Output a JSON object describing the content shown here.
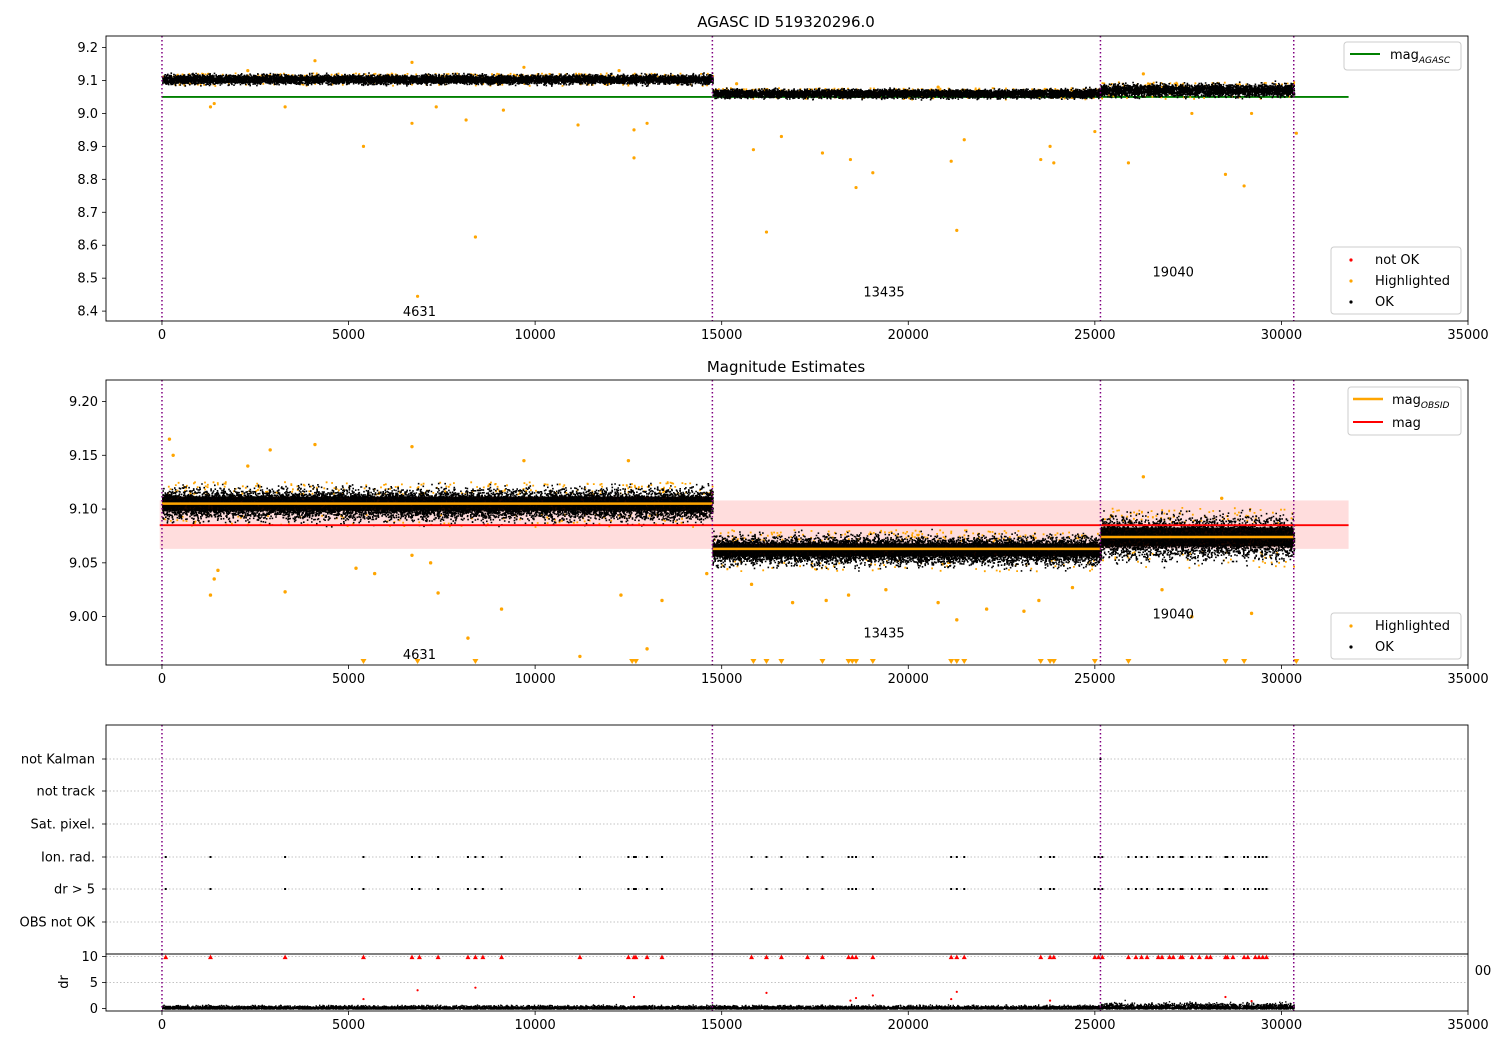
{
  "figure": {
    "background": "#ffffff",
    "colors": {
      "ok": "#000000",
      "highlighted": "#ffa500",
      "not_ok": "#ff0000",
      "mag_agasc_line": "#008000",
      "mag_obsid_line": "#ffa500",
      "mag_line": "#ff0000",
      "mag_band": "#ffdddd",
      "obs_boundary": "#800080",
      "grid": "#b0b0b0"
    }
  },
  "chart_data": [
    {
      "type": "scatter",
      "title": "AGASC ID 519320296.0",
      "xlabel": "",
      "ylabel": "",
      "xlim": [
        -1500,
        35000
      ],
      "ylim": [
        8.37,
        9.235
      ],
      "xticks": [
        0,
        5000,
        10000,
        15000,
        20000,
        25000,
        30000,
        35000
      ],
      "yticks": [
        8.4,
        8.5,
        8.6,
        8.7,
        8.8,
        8.9,
        9.0,
        9.1,
        9.2
      ],
      "ytick_labels": [
        "8.4",
        "8.5",
        "8.6",
        "8.7",
        "8.8",
        "8.9",
        "9.0",
        "9.1",
        "9.2"
      ],
      "obs_boundaries": [
        0,
        14750,
        25150,
        30330
      ],
      "obs_labels": [
        {
          "text": "4631",
          "x": 6900,
          "y": 8.4
        },
        {
          "text": "13435",
          "x": 19350,
          "y": 8.46
        },
        {
          "text": "19040",
          "x": 27100,
          "y": 8.52
        }
      ],
      "hlines": [
        {
          "name": "mag_AGASC",
          "y": 9.05,
          "x": [
            0,
            31800
          ],
          "color": "#008000"
        }
      ],
      "ok_segments": [
        {
          "x": [
            0,
            14750
          ],
          "center": 9.105,
          "spread": 0.012
        },
        {
          "x": [
            14750,
            25150
          ],
          "center": 9.062,
          "spread": 0.011
        },
        {
          "x": [
            25150,
            30330
          ],
          "center": 9.072,
          "spread": 0.016
        }
      ],
      "highlighted_points": [
        [
          6850,
          8.445
        ],
        [
          8400,
          8.625
        ],
        [
          16200,
          8.64
        ],
        [
          21300,
          8.645
        ],
        [
          5400,
          8.9
        ],
        [
          8150,
          8.98
        ],
        [
          9150,
          9.01
        ],
        [
          11150,
          8.965
        ],
        [
          12650,
          8.865
        ],
        [
          12650,
          8.95
        ],
        [
          13000,
          8.97
        ],
        [
          6700,
          8.97
        ],
        [
          7350,
          9.02
        ],
        [
          1300,
          9.02
        ],
        [
          1400,
          9.03
        ],
        [
          3300,
          9.02
        ],
        [
          15850,
          8.89
        ],
        [
          16600,
          8.93
        ],
        [
          17700,
          8.88
        ],
        [
          18450,
          8.86
        ],
        [
          18600,
          8.775
        ],
        [
          19050,
          8.82
        ],
        [
          21150,
          8.855
        ],
        [
          21500,
          8.92
        ],
        [
          23550,
          8.86
        ],
        [
          23800,
          8.9
        ],
        [
          23900,
          8.85
        ],
        [
          25000,
          8.945
        ],
        [
          25900,
          8.85
        ],
        [
          27600,
          9.0
        ],
        [
          28500,
          8.815
        ],
        [
          29000,
          8.78
        ],
        [
          29200,
          9.0
        ],
        [
          30400,
          8.94
        ],
        [
          2300,
          9.13
        ],
        [
          4100,
          9.16
        ],
        [
          6700,
          9.155
        ],
        [
          9700,
          9.14
        ],
        [
          12250,
          9.13
        ],
        [
          15400,
          9.09
        ],
        [
          20800,
          9.08
        ],
        [
          26300,
          9.12
        ]
      ],
      "legends": [
        {
          "placement": "upper right",
          "entries": [
            {
              "label": "mag",
              "sub": "AGASC",
              "kind": "line",
              "color": "#008000"
            }
          ]
        },
        {
          "placement": "lower right",
          "entries": [
            {
              "label": "not OK",
              "kind": "point",
              "color": "#ff0000"
            },
            {
              "label": "Highlighted",
              "kind": "point",
              "color": "#ffa500"
            },
            {
              "label": "OK",
              "kind": "point",
              "color": "#000000"
            }
          ]
        }
      ]
    },
    {
      "type": "scatter",
      "title": "Magnitude Estimates",
      "xlabel": "",
      "ylabel": "",
      "xlim": [
        -1500,
        35000
      ],
      "ylim": [
        8.955,
        9.22
      ],
      "xticks": [
        0,
        5000,
        10000,
        15000,
        20000,
        25000,
        30000,
        35000
      ],
      "yticks": [
        9.0,
        9.05,
        9.1,
        9.15,
        9.2
      ],
      "ytick_labels": [
        "9.00",
        "9.05",
        "9.10",
        "9.15",
        "9.20"
      ],
      "obs_boundaries": [
        0,
        14750,
        25150,
        30330
      ],
      "obs_labels": [
        {
          "text": "4631",
          "x": 6900,
          "y": 8.965
        },
        {
          "text": "13435",
          "x": 19350,
          "y": 8.985
        },
        {
          "text": "19040",
          "x": 27100,
          "y": 9.003
        }
      ],
      "mag": 9.085,
      "mag_band": [
        9.063,
        9.108
      ],
      "mag_band_x": [
        -1500,
        31800
      ],
      "mag_obsid": [
        {
          "x": [
            0,
            14750
          ],
          "y": 9.105
        },
        {
          "x": [
            14750,
            25150
          ],
          "y": 9.063
        },
        {
          "x": [
            25150,
            30330
          ],
          "y": 9.074
        }
      ],
      "ok_segments": [
        {
          "x": [
            0,
            14750
          ],
          "center": 9.105,
          "spread": 0.012
        },
        {
          "x": [
            14750,
            25150
          ],
          "center": 9.062,
          "spread": 0.011
        },
        {
          "x": [
            25150,
            30330
          ],
          "center": 9.074,
          "spread": 0.016
        }
      ],
      "highlighted_points": [
        [
          200,
          9.165
        ],
        [
          300,
          9.15
        ],
        [
          1300,
          9.02
        ],
        [
          1400,
          9.035
        ],
        [
          1500,
          9.043
        ],
        [
          2300,
          9.14
        ],
        [
          2900,
          9.155
        ],
        [
          3300,
          9.023
        ],
        [
          4100,
          9.16
        ],
        [
          5200,
          9.045
        ],
        [
          5700,
          9.04
        ],
        [
          6700,
          9.158
        ],
        [
          6700,
          9.057
        ],
        [
          7200,
          9.05
        ],
        [
          7400,
          9.022
        ],
        [
          8200,
          8.98
        ],
        [
          9100,
          9.007
        ],
        [
          9700,
          9.145
        ],
        [
          11200,
          8.963
        ],
        [
          12300,
          9.02
        ],
        [
          12500,
          9.145
        ],
        [
          13000,
          8.97
        ],
        [
          13400,
          9.015
        ],
        [
          14600,
          9.04
        ],
        [
          15800,
          9.03
        ],
        [
          16900,
          9.013
        ],
        [
          17800,
          9.015
        ],
        [
          18400,
          9.02
        ],
        [
          19400,
          9.025
        ],
        [
          20800,
          9.013
        ],
        [
          21300,
          8.997
        ],
        [
          22100,
          9.007
        ],
        [
          23100,
          9.005
        ],
        [
          23500,
          9.015
        ],
        [
          24400,
          9.027
        ],
        [
          26300,
          9.13
        ],
        [
          26800,
          9.025
        ],
        [
          27600,
          9.0
        ],
        [
          28400,
          9.11
        ],
        [
          29200,
          9.003
        ]
      ],
      "clipped_x": [
        5400,
        6850,
        8400,
        12600,
        12700,
        15850,
        16200,
        16600,
        17700,
        18400,
        18500,
        18600,
        19050,
        21150,
        21300,
        21500,
        23550,
        23800,
        23900,
        25000,
        25900,
        28500,
        29000,
        30400
      ],
      "legend": {
        "placement": "upper right",
        "entries": [
          {
            "label": "mag",
            "sub": "OBSID",
            "kind": "line",
            "color": "#ffa500"
          },
          {
            "label": "mag",
            "sub": "",
            "kind": "line",
            "color": "#ff0000"
          }
        ]
      },
      "legend2": {
        "placement": "lower right",
        "entries": [
          {
            "label": "Highlighted",
            "kind": "point",
            "color": "#ffa500"
          },
          {
            "label": "OK",
            "kind": "point",
            "color": "#000000"
          }
        ]
      }
    },
    {
      "type": "scatter",
      "title": "",
      "xlabel": "",
      "ylabel": "",
      "xlim": [
        -1500,
        35000
      ],
      "categories": [
        "OBS not OK",
        "dr > 5",
        "Ion. rad.",
        "Sat. pixel.",
        "not track",
        "not Kalman"
      ],
      "obs_boundaries": [
        0,
        14750,
        25150,
        30330
      ],
      "flag_x": [
        100,
        1300,
        3300,
        5400,
        6700,
        6900,
        7400,
        8200,
        8400,
        8600,
        9100,
        11200,
        12500,
        12650,
        12700,
        13000,
        13400,
        15800,
        16200,
        16600,
        17300,
        17700,
        18400,
        18500,
        18600,
        19050,
        21150,
        21300,
        21500,
        23550,
        23800,
        23900,
        25000,
        25100,
        25200,
        25900,
        26100,
        26250,
        26400,
        26700,
        26800,
        27000,
        27100,
        27300,
        27350,
        27600,
        27800,
        28000,
        28100,
        28500,
        28550,
        28700,
        29000,
        29100,
        29300,
        29400,
        29500,
        29600
      ]
    },
    {
      "type": "scatter",
      "title": "",
      "xlabel": "",
      "ylabel": "dr",
      "xlim": [
        -1500,
        35000
      ],
      "ylim": [
        -0.5,
        10.5
      ],
      "xticks": [
        0,
        5000,
        10000,
        15000,
        20000,
        25000,
        30000,
        35000
      ],
      "yticks": [
        0,
        5,
        10
      ],
      "obs_boundaries": [
        0,
        14750,
        25150,
        30330
      ],
      "clipped_value": 10,
      "outliers": [
        [
          5400,
          1.8
        ],
        [
          6850,
          3.5
        ],
        [
          8400,
          4.0
        ],
        [
          12650,
          2.2
        ],
        [
          16200,
          3.0
        ],
        [
          18450,
          1.5
        ],
        [
          18600,
          2.0
        ],
        [
          19050,
          2.5
        ],
        [
          21150,
          1.8
        ],
        [
          21300,
          3.2
        ],
        [
          23800,
          1.5
        ],
        [
          28500,
          2.2
        ],
        [
          29200,
          1.4
        ]
      ],
      "overflow_tick": "00"
    }
  ]
}
